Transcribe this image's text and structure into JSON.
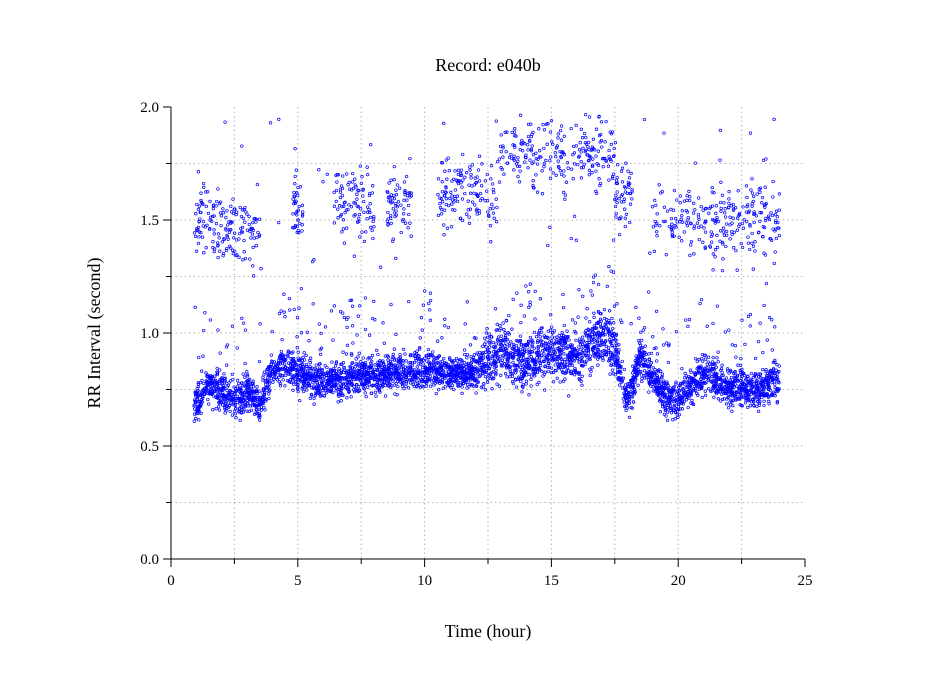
{
  "chart_data": {
    "type": "scatter",
    "title": "Record:  e040b",
    "xlabel": "Time (hour)",
    "ylabel": "RR Interval (second)",
    "xlim": [
      0,
      25
    ],
    "ylim": [
      0.0,
      2.0
    ],
    "xticks": [
      0,
      5,
      10,
      15,
      20,
      25
    ],
    "xtick_labels": [
      "0",
      "5",
      "10",
      "15",
      "20",
      "25"
    ],
    "yticks": [
      0.0,
      0.5,
      1.0,
      1.5,
      2.0
    ],
    "ytick_labels": [
      "0.0",
      "0.5",
      "1.0",
      "1.5",
      "2.0"
    ],
    "grid": true,
    "marker": "open-circle",
    "color": "#0000ff",
    "x_range_of_data": [
      0.9,
      24.0
    ],
    "main_band_trend": [
      {
        "x": 0.9,
        "y": 0.68
      },
      {
        "x": 1.5,
        "y": 0.77
      },
      {
        "x": 2.0,
        "y": 0.74
      },
      {
        "x": 2.5,
        "y": 0.7
      },
      {
        "x": 3.0,
        "y": 0.74
      },
      {
        "x": 3.5,
        "y": 0.68
      },
      {
        "x": 4.0,
        "y": 0.84
      },
      {
        "x": 4.5,
        "y": 0.86
      },
      {
        "x": 5.0,
        "y": 0.82
      },
      {
        "x": 6.0,
        "y": 0.78
      },
      {
        "x": 7.0,
        "y": 0.8
      },
      {
        "x": 8.0,
        "y": 0.82
      },
      {
        "x": 9.0,
        "y": 0.82
      },
      {
        "x": 10.0,
        "y": 0.84
      },
      {
        "x": 11.0,
        "y": 0.82
      },
      {
        "x": 12.0,
        "y": 0.83
      },
      {
        "x": 12.5,
        "y": 0.88
      },
      {
        "x": 13.0,
        "y": 0.92
      },
      {
        "x": 14.0,
        "y": 0.86
      },
      {
        "x": 15.0,
        "y": 0.92
      },
      {
        "x": 16.0,
        "y": 0.88
      },
      {
        "x": 16.5,
        "y": 0.93
      },
      {
        "x": 17.0,
        "y": 0.98
      },
      {
        "x": 17.5,
        "y": 0.92
      },
      {
        "x": 18.0,
        "y": 0.7
      },
      {
        "x": 18.5,
        "y": 0.9
      },
      {
        "x": 19.0,
        "y": 0.8
      },
      {
        "x": 19.5,
        "y": 0.72
      },
      {
        "x": 20.0,
        "y": 0.7
      },
      {
        "x": 21.0,
        "y": 0.82
      },
      {
        "x": 22.0,
        "y": 0.76
      },
      {
        "x": 23.0,
        "y": 0.74
      },
      {
        "x": 24.0,
        "y": 0.8
      }
    ],
    "upper_clusters": [
      {
        "x_range": [
          0.9,
          2.0
        ],
        "y": 1.5
      },
      {
        "x_range": [
          2.0,
          3.5
        ],
        "y": 1.45
      },
      {
        "x_range": [
          4.8,
          5.2
        ],
        "y": 1.55
      },
      {
        "x_range": [
          6.4,
          8.0
        ],
        "y": 1.58
      },
      {
        "x_range": [
          8.5,
          9.5
        ],
        "y": 1.55
      },
      {
        "x_range": [
          10.5,
          13.0
        ],
        "y": 1.62
      },
      {
        "x_range": [
          13.0,
          17.5
        ],
        "y": 1.8
      },
      {
        "x_range": [
          17.5,
          18.2
        ],
        "y": 1.6
      },
      {
        "x_range": [
          19.0,
          24.0
        ],
        "y": 1.5
      }
    ]
  }
}
